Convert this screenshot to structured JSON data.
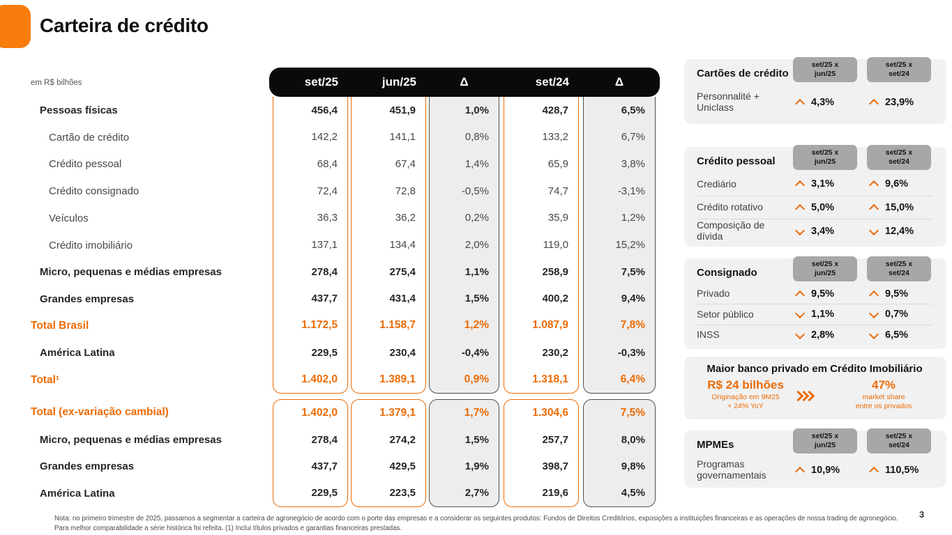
{
  "colors": {
    "accent-orange": "#EC6B06",
    "logo-orange": "#F87D0D",
    "header-bar": "#0A0A0A",
    "badge-gray": "#A7A7A7",
    "panel-gray": "#F1F1F1",
    "delta-fill": "#EDEDED",
    "delta-border": "#4F4F4F",
    "note-gray": "#4A4A4A",
    "divider": "#DBDBDB"
  },
  "header": {
    "title": "Carteira de crédito"
  },
  "table": {
    "unit_label": "em R$ bilhões",
    "columns": [
      "set/25",
      "jun/25",
      "Δ",
      "set/24",
      "Δ"
    ],
    "block1": [
      {
        "label": "Pessoas físicas",
        "style": "bold",
        "values": [
          "456,4",
          "451,9",
          "1,0%",
          "428,7",
          "6,5%"
        ]
      },
      {
        "label": "Cartão de crédito",
        "style": "plain",
        "values": [
          "142,2",
          "141,1",
          "0,8%",
          "133,2",
          "6,7%"
        ]
      },
      {
        "label": "Crédito pessoal",
        "style": "plain",
        "values": [
          "68,4",
          "67,4",
          "1,4%",
          "65,9",
          "3,8%"
        ]
      },
      {
        "label": "Crédito consignado",
        "style": "plain",
        "values": [
          "72,4",
          "72,8",
          "-0,5%",
          "74,7",
          "-3,1%"
        ]
      },
      {
        "label": "Veículos",
        "style": "plain",
        "values": [
          "36,3",
          "36,2",
          "0,2%",
          "35,9",
          "1,2%"
        ]
      },
      {
        "label": "Crédito imobiliário",
        "style": "plain",
        "values": [
          "137,1",
          "134,4",
          "2,0%",
          "119,0",
          "15,2%"
        ]
      },
      {
        "label": "Micro, pequenas e médias empresas",
        "style": "bold",
        "values": [
          "278,4",
          "275,4",
          "1,1%",
          "258,9",
          "7,5%"
        ]
      },
      {
        "label": "Grandes empresas",
        "style": "bold",
        "values": [
          "437,7",
          "431,4",
          "1,5%",
          "400,2",
          "9,4%"
        ]
      },
      {
        "label": "Total Brasil",
        "style": "total",
        "values": [
          "1.172,5",
          "1.158,7",
          "1,2%",
          "1.087,9",
          "7,8%"
        ]
      },
      {
        "label": "América Latina",
        "style": "bold",
        "values": [
          "229,5",
          "230,4",
          "-0,4%",
          "230,2",
          "-0,3%"
        ]
      },
      {
        "label": "Total¹",
        "style": "total",
        "values": [
          "1.402,0",
          "1.389,1",
          "0,9%",
          "1.318,1",
          "6,4%"
        ]
      }
    ],
    "block2": [
      {
        "label": "Total (ex-variação cambial)",
        "style": "total",
        "values": [
          "1.402,0",
          "1.379,1",
          "1,7%",
          "1.304,6",
          "7,5%"
        ]
      },
      {
        "label": "Micro, pequenas e médias empresas",
        "style": "bold",
        "values": [
          "278,4",
          "274,2",
          "1,5%",
          "257,7",
          "8,0%"
        ]
      },
      {
        "label": "Grandes empresas",
        "style": "bold",
        "values": [
          "437,7",
          "429,5",
          "1,9%",
          "398,7",
          "9,8%"
        ]
      },
      {
        "label": "América Latina",
        "style": "bold",
        "values": [
          "229,5",
          "223,5",
          "2,7%",
          "219,6",
          "4,5%"
        ]
      }
    ]
  },
  "panels": [
    {
      "id": "cartoes-de-credito",
      "title": "Cartões de crédito",
      "badges": [
        [
          "set/25 x",
          "jun/25"
        ],
        [
          "set/25 x",
          "set/24"
        ]
      ],
      "rows": [
        {
          "label": "Personnalité + Uniclass",
          "v1": {
            "dir": "up",
            "value": "4,3%"
          },
          "v2": {
            "dir": "up",
            "value": "23,9%"
          }
        }
      ]
    },
    {
      "id": "credito-pessoal",
      "title": "Crédito pessoal",
      "badges": [
        [
          "set/25 x",
          "jun/25"
        ],
        [
          "set/25 x",
          "set/24"
        ]
      ],
      "rows": [
        {
          "label": "Crediário",
          "v1": {
            "dir": "up",
            "value": "3,1%"
          },
          "v2": {
            "dir": "up",
            "value": "9,6%"
          }
        },
        {
          "label": "Crédito rotativo",
          "v1": {
            "dir": "up",
            "value": "5,0%"
          },
          "v2": {
            "dir": "up",
            "value": "15,0%"
          }
        },
        {
          "label": "Composição de dívida",
          "v1": {
            "dir": "down",
            "value": "3,4%"
          },
          "v2": {
            "dir": "down",
            "value": "12,4%"
          }
        }
      ]
    },
    {
      "id": "consignado",
      "title": "Consignado",
      "badges": [
        [
          "set/25 x",
          "jun/25"
        ],
        [
          "set/25 x",
          "set/24"
        ]
      ],
      "rows": [
        {
          "label": "Privado",
          "v1": {
            "dir": "up",
            "value": "9,5%"
          },
          "v2": {
            "dir": "up",
            "value": "9,5%"
          }
        },
        {
          "label": "Setor público",
          "v1": {
            "dir": "down",
            "value": "1,1%"
          },
          "v2": {
            "dir": "down",
            "value": "0,7%"
          }
        },
        {
          "label": "INSS",
          "v1": {
            "dir": "down",
            "value": "2,8%"
          },
          "v2": {
            "dir": "down",
            "value": "6,5%"
          }
        }
      ]
    },
    {
      "id": "mpmes",
      "title": "MPMEs",
      "badges": [
        [
          "set/25 x",
          "jun/25"
        ],
        [
          "set/25 x",
          "set/24"
        ]
      ],
      "rows": [
        {
          "label": "Programas governamentais",
          "v1": {
            "dir": "up",
            "value": "10,9%"
          },
          "v2": {
            "dir": "up",
            "value": "110,5%"
          }
        }
      ]
    }
  ],
  "highlight": {
    "title": "Maior banco privado em Crédito Imobiliário",
    "left": {
      "value": "R$ 24 bilhões",
      "line1": "Originação em 9M25",
      "line2": "+ 24% YoY"
    },
    "right": {
      "value": "47%",
      "line1": "market share",
      "line2": "entre os privados"
    }
  },
  "footer": {
    "note": "Nota: no primeiro trimestre de 2025, passamos a segmentar a carteira de agronegócio de acordo com o porte das empresas e a considerar os seguintes produtos: Fundos de Direitos Creditórios, exposições a instituições financeiras e as operações de nossa trading de agronegócio. Para melhor comparabilidade a série histórica foi refeita. (1) Inclui títulos privados e garantias financeiras prestadas.",
    "page_number": "3"
  }
}
